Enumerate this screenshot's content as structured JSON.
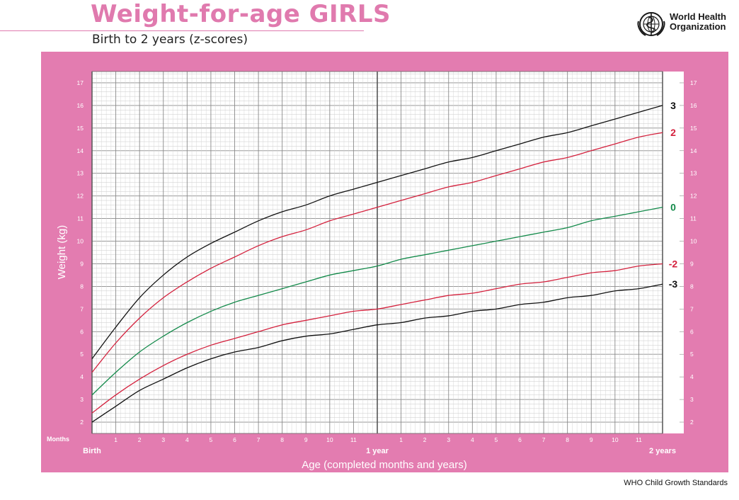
{
  "page": {
    "title": "Weight-for-age GIRLS",
    "subtitle": "Birth to 2 years (z-scores)",
    "org_line1": "World Health",
    "org_line2": "Organization",
    "footer": "WHO Child Growth Standards",
    "colors": {
      "accent": "#e07aae",
      "frame": "#e37cb0",
      "black": "#111111",
      "red": "#d4213d",
      "green": "#138a4a"
    }
  },
  "chart_data": {
    "type": "line",
    "xlabel": "Age (completed months and years)",
    "ylabel": "Weight (kg)",
    "months_label": "Months",
    "x_major_labels": [
      "Birth",
      "1 year",
      "2 years"
    ],
    "x_minor_ticks": [
      "1",
      "2",
      "3",
      "4",
      "5",
      "6",
      "7",
      "8",
      "9",
      "10",
      "11"
    ],
    "xlim": [
      0,
      24
    ],
    "ylim": [
      1.5,
      17.5
    ],
    "y_ticks": [
      2,
      3,
      4,
      5,
      6,
      7,
      8,
      9,
      10,
      11,
      12,
      13,
      14,
      15,
      16,
      17
    ],
    "grid": true,
    "x": [
      0,
      1,
      2,
      3,
      4,
      5,
      6,
      7,
      8,
      9,
      10,
      11,
      12,
      13,
      14,
      15,
      16,
      17,
      18,
      19,
      20,
      21,
      22,
      23,
      24
    ],
    "series": [
      {
        "name": "3",
        "color": "#111111",
        "values": [
          4.8,
          6.2,
          7.5,
          8.5,
          9.3,
          9.9,
          10.4,
          10.9,
          11.3,
          11.6,
          12.0,
          12.3,
          12.6,
          12.9,
          13.2,
          13.5,
          13.7,
          14.0,
          14.3,
          14.6,
          14.8,
          15.1,
          15.4,
          15.7,
          16.0
        ]
      },
      {
        "name": "2",
        "color": "#d4213d",
        "values": [
          4.2,
          5.5,
          6.6,
          7.5,
          8.2,
          8.8,
          9.3,
          9.8,
          10.2,
          10.5,
          10.9,
          11.2,
          11.5,
          11.8,
          12.1,
          12.4,
          12.6,
          12.9,
          13.2,
          13.5,
          13.7,
          14.0,
          14.3,
          14.6,
          14.8
        ]
      },
      {
        "name": "0",
        "color": "#138a4a",
        "values": [
          3.2,
          4.2,
          5.1,
          5.8,
          6.4,
          6.9,
          7.3,
          7.6,
          7.9,
          8.2,
          8.5,
          8.7,
          8.9,
          9.2,
          9.4,
          9.6,
          9.8,
          10.0,
          10.2,
          10.4,
          10.6,
          10.9,
          11.1,
          11.3,
          11.5
        ]
      },
      {
        "name": "-2",
        "color": "#d4213d",
        "values": [
          2.4,
          3.2,
          3.9,
          4.5,
          5.0,
          5.4,
          5.7,
          6.0,
          6.3,
          6.5,
          6.7,
          6.9,
          7.0,
          7.2,
          7.4,
          7.6,
          7.7,
          7.9,
          8.1,
          8.2,
          8.4,
          8.6,
          8.7,
          8.9,
          9.0
        ]
      },
      {
        "name": "-3",
        "color": "#111111",
        "values": [
          2.0,
          2.7,
          3.4,
          3.9,
          4.4,
          4.8,
          5.1,
          5.3,
          5.6,
          5.8,
          5.9,
          6.1,
          6.3,
          6.4,
          6.6,
          6.7,
          6.9,
          7.0,
          7.2,
          7.3,
          7.5,
          7.6,
          7.8,
          7.9,
          8.1
        ]
      }
    ]
  }
}
